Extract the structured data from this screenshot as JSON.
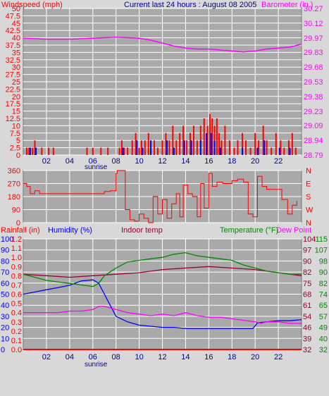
{
  "colors": {
    "page_bg": "#d8d8d8",
    "plot_bg": "#a9a9a9",
    "grid": "#ffffff",
    "wind_gust": "#ff0000",
    "wind_avg": "#0000ff",
    "barometer": "#ff00ff",
    "direction": "#ff0000",
    "humidity": "#0000ff",
    "indoor": "#990033",
    "temperature": "#008800",
    "dewpoint": "#ff00ff",
    "rainfall": "#ff0000",
    "title": "#000099"
  },
  "top": {
    "left_label": "Windspeed (mph)",
    "title": "Current last 24 hours : August 08 2005",
    "right_label": "Barometer (in.)"
  },
  "sunrise_label": "sunrise",
  "bottom_header": {
    "rain": "Rainfall (in)",
    "humidity": "Humidity (%)",
    "indoor": "Indoor temp",
    "temperature": "Temperature (°F)",
    "dewpoint": "Dew Point"
  },
  "chart_data": [
    {
      "type": "bar",
      "title": "Current last 24 hours : August 08 2005",
      "ylabel": "Windspeed (mph)",
      "y2label": "Barometer (in.)",
      "x_ticks": [
        "02",
        "04",
        "06",
        "08",
        "10",
        "12",
        "14",
        "16",
        "18",
        "20",
        "22"
      ],
      "x_range": [
        0,
        24
      ],
      "ylim": [
        0,
        50
      ],
      "y_ticks": [
        0,
        2.5,
        5,
        7.5,
        10,
        12.5,
        15,
        17.5,
        20,
        22.5,
        25,
        27.5,
        30,
        32.5,
        35,
        37.5,
        40,
        42.5,
        45,
        47.5,
        50
      ],
      "y_tick_labels": [
        "0",
        "2.5",
        "5",
        "7.5",
        "10",
        "12.5",
        "15",
        "17.5",
        "20",
        "22.5",
        "25",
        "27.5",
        "30",
        "32.5",
        "35",
        "37.5",
        "40",
        "42.5",
        "45",
        "47.5",
        "50"
      ],
      "y2lim": [
        28.79,
        30.27
      ],
      "y2_ticks": [
        28.79,
        28.94,
        29.09,
        29.23,
        29.38,
        29.53,
        29.68,
        29.83,
        29.97,
        30.12,
        30.27
      ],
      "y2_tick_labels": [
        "28.79",
        "28.94",
        "29.09",
        "29.23",
        "29.38",
        "29.53",
        "29.68",
        "29.83",
        "29.97",
        "30.12",
        "30.27"
      ],
      "series": [
        {
          "name": "Windspeed",
          "kind": "bars",
          "color": "#ff0000",
          "x": [
            0.3,
            0.5,
            0.8,
            1.0,
            1.6,
            2.2,
            2.6,
            5.5,
            6.0,
            6.7,
            7.3,
            8.3,
            8.5,
            8.7,
            9.0,
            9.4,
            9.7,
            10.0,
            10.2,
            10.5,
            10.8,
            11.0,
            11.3,
            11.6,
            12.0,
            12.3,
            12.6,
            12.9,
            13.2,
            13.5,
            13.8,
            14.1,
            14.4,
            14.7,
            15.0,
            15.3,
            15.6,
            15.9,
            16.1,
            16.3,
            16.5,
            16.7,
            16.9,
            17.1,
            17.4,
            17.8,
            18.2,
            18.5,
            18.9,
            19.2,
            19.6,
            20.0,
            20.3,
            20.7,
            21.0,
            21.4,
            21.8,
            22.2,
            22.5,
            22.9,
            23.2,
            23.5
          ],
          "values": [
            2.5,
            2.5,
            2.5,
            5,
            2.5,
            2.5,
            2.5,
            2.5,
            2.5,
            2.5,
            2.5,
            2.5,
            5,
            2.5,
            2.5,
            5,
            7.5,
            2.5,
            5,
            5,
            7.5,
            2.5,
            5,
            2.5,
            5,
            7.5,
            5,
            10,
            5,
            7.5,
            10,
            5,
            7.5,
            10,
            5,
            10,
            12.5,
            10,
            14,
            12.5,
            10,
            12.5,
            7.5,
            5,
            10,
            5,
            2.5,
            5,
            7.5,
            5,
            2.5,
            7.5,
            5,
            10,
            5,
            2.5,
            7.5,
            5,
            2.5,
            5,
            7.5,
            2.5
          ]
        },
        {
          "name": "Average wind",
          "kind": "bars",
          "color": "#0000ff",
          "x": [
            0.6,
            1.1,
            8.6,
            9.8,
            10.3,
            11.0,
            12.4,
            13.0,
            13.9,
            14.5,
            15.3,
            15.8,
            16.2,
            16.5,
            17.0,
            18.9,
            20.2,
            20.8,
            22.1,
            23.0
          ],
          "values": [
            2.5,
            2.5,
            2.5,
            5,
            2.5,
            5,
            5,
            2.5,
            5,
            5,
            5,
            7.5,
            7.5,
            5,
            2.5,
            2.5,
            2.5,
            5,
            2.5,
            2.5
          ]
        },
        {
          "name": "Barometer",
          "kind": "line",
          "axis": "y2",
          "color": "#ff00ff",
          "x": [
            0,
            2,
            4,
            6,
            8,
            10,
            11,
            12,
            13,
            14,
            15,
            16,
            17,
            18,
            19,
            20,
            21,
            22,
            23,
            24
          ],
          "values": [
            29.97,
            29.96,
            29.96,
            29.97,
            29.98,
            29.97,
            29.95,
            29.92,
            29.89,
            29.87,
            29.86,
            29.86,
            29.85,
            29.84,
            29.83,
            29.84,
            29.86,
            29.87,
            29.88,
            29.91
          ]
        }
      ]
    },
    {
      "type": "line",
      "ylabel": "Wind direction",
      "ylim": [
        0,
        360
      ],
      "y_ticks": [
        0,
        90,
        180,
        270,
        360
      ],
      "y_tick_labels": [
        "0",
        "90",
        "180",
        "270",
        "360"
      ],
      "y2_labels": [
        "N",
        "W",
        "S",
        "E",
        "N"
      ],
      "x_range": [
        0,
        24
      ],
      "series": [
        {
          "name": "Direction",
          "color": "#ff0000",
          "x": [
            0,
            0.3,
            0.6,
            1.0,
            1.4,
            3.0,
            5.0,
            7.0,
            7.5,
            8.0,
            8.1,
            8.6,
            8.8,
            9.2,
            9.6,
            10.0,
            10.4,
            10.8,
            11.2,
            11.6,
            12.0,
            12.4,
            12.8,
            13.2,
            13.5,
            13.8,
            14.2,
            14.6,
            15.0,
            15.3,
            15.6,
            16.0,
            16.3,
            16.7,
            17.2,
            18.0,
            18.5,
            19.0,
            19.4,
            19.8,
            20.2,
            20.6,
            21.0,
            22.0,
            22.3,
            22.8,
            23.2,
            23.6
          ],
          "values": [
            270,
            250,
            200,
            220,
            200,
            200,
            200,
            215,
            220,
            340,
            360,
            360,
            90,
            20,
            10,
            60,
            30,
            0,
            180,
            60,
            160,
            30,
            130,
            200,
            40,
            260,
            200,
            180,
            40,
            270,
            100,
            340,
            250,
            280,
            270,
            290,
            300,
            280,
            60,
            40,
            320,
            250,
            230,
            230,
            160,
            60,
            120,
            150
          ]
        }
      ]
    },
    {
      "type": "line",
      "x_ticks": [
        "02",
        "04",
        "06",
        "08",
        "10",
        "12",
        "14",
        "16",
        "18",
        "20",
        "22"
      ],
      "x_range": [
        0,
        24
      ],
      "rain_axis": {
        "label": "Rainfall (in)",
        "ylim": [
          0,
          1.2
        ],
        "tick_labels": [
          "0.0",
          "0.1",
          "0.2",
          "0.3",
          "0.4",
          "0.5",
          "0.6",
          "0.7",
          "0.8",
          "0.9",
          "1.0",
          "1.1",
          "1.2"
        ]
      },
      "humidity_axis": {
        "label": "Humidity (%)",
        "ylim": [
          0,
          100
        ],
        "tick_labels": [
          "0",
          "10",
          "20",
          "30",
          "40",
          "50",
          "60",
          "70",
          "80",
          "90",
          "100"
        ]
      },
      "temp_axis_1": {
        "ylim": [
          32,
          104
        ],
        "tick_labels": [
          "32",
          "39",
          "46",
          "54",
          "61",
          "68",
          "75",
          "82",
          "90",
          "97",
          "104"
        ]
      },
      "temp_axis_2": {
        "ylim": [
          32,
          115
        ],
        "tick_labels": [
          "32",
          "40",
          "49",
          "57",
          "65",
          "74",
          "82",
          "90",
          "98",
          "107",
          "115"
        ]
      },
      "series": [
        {
          "name": "Humidity (%)",
          "axis": "humidity",
          "color": "#0000ff",
          "x": [
            0,
            1,
            2,
            3,
            4,
            5,
            6,
            6.5,
            7,
            7.5,
            8,
            9,
            10,
            11,
            12,
            13,
            14,
            15,
            16,
            17,
            18,
            19,
            19.8,
            20.2,
            21,
            22,
            23,
            24
          ],
          "values": [
            50,
            52,
            54,
            56,
            58,
            62,
            63,
            60,
            50,
            40,
            30,
            25,
            22,
            21,
            20,
            20,
            19,
            19,
            19,
            19,
            19,
            19,
            19,
            24,
            25,
            26,
            26,
            27
          ]
        },
        {
          "name": "Indoor temp",
          "axis": "temp1",
          "color": "#990033",
          "x": [
            0,
            2,
            4,
            6,
            8,
            10,
            12,
            14,
            16,
            18,
            20,
            22,
            24
          ],
          "values": [
            81,
            80,
            79,
            80,
            81,
            82,
            84,
            85,
            86,
            85,
            84,
            82,
            80
          ]
        },
        {
          "name": "Temperature (°F)",
          "axis": "temp1",
          "color": "#008800",
          "x": [
            0,
            1,
            2,
            3,
            4,
            5,
            6,
            6.5,
            7,
            8,
            9,
            10,
            11,
            12,
            13,
            14,
            15,
            16,
            17,
            18,
            19,
            20,
            21,
            22,
            23,
            24
          ],
          "values": [
            81,
            79,
            77,
            76,
            75,
            74,
            73,
            75,
            80,
            85,
            89,
            90,
            91,
            92,
            94,
            95,
            93,
            92,
            91,
            90,
            87,
            85,
            83,
            82,
            81,
            81
          ]
        },
        {
          "name": "Dew Point",
          "axis": "temp1",
          "color": "#ff00ff",
          "x": [
            0,
            1,
            2,
            3,
            4,
            5,
            6,
            6.5,
            7,
            8,
            9,
            10,
            11,
            12,
            13,
            14,
            15,
            16,
            17,
            18,
            19,
            20,
            20.5,
            21,
            22,
            23,
            24
          ],
          "values": [
            56,
            56,
            56,
            56,
            57,
            57,
            58,
            60,
            60,
            58,
            56,
            55,
            54,
            55,
            54,
            56,
            54,
            53,
            53,
            52,
            51,
            50,
            49,
            50,
            50,
            49,
            49
          ]
        },
        {
          "name": "Rainfall (in)",
          "axis": "rain",
          "color": "#ff0000",
          "x": [
            0,
            24
          ],
          "values": [
            0,
            0
          ]
        }
      ]
    }
  ]
}
